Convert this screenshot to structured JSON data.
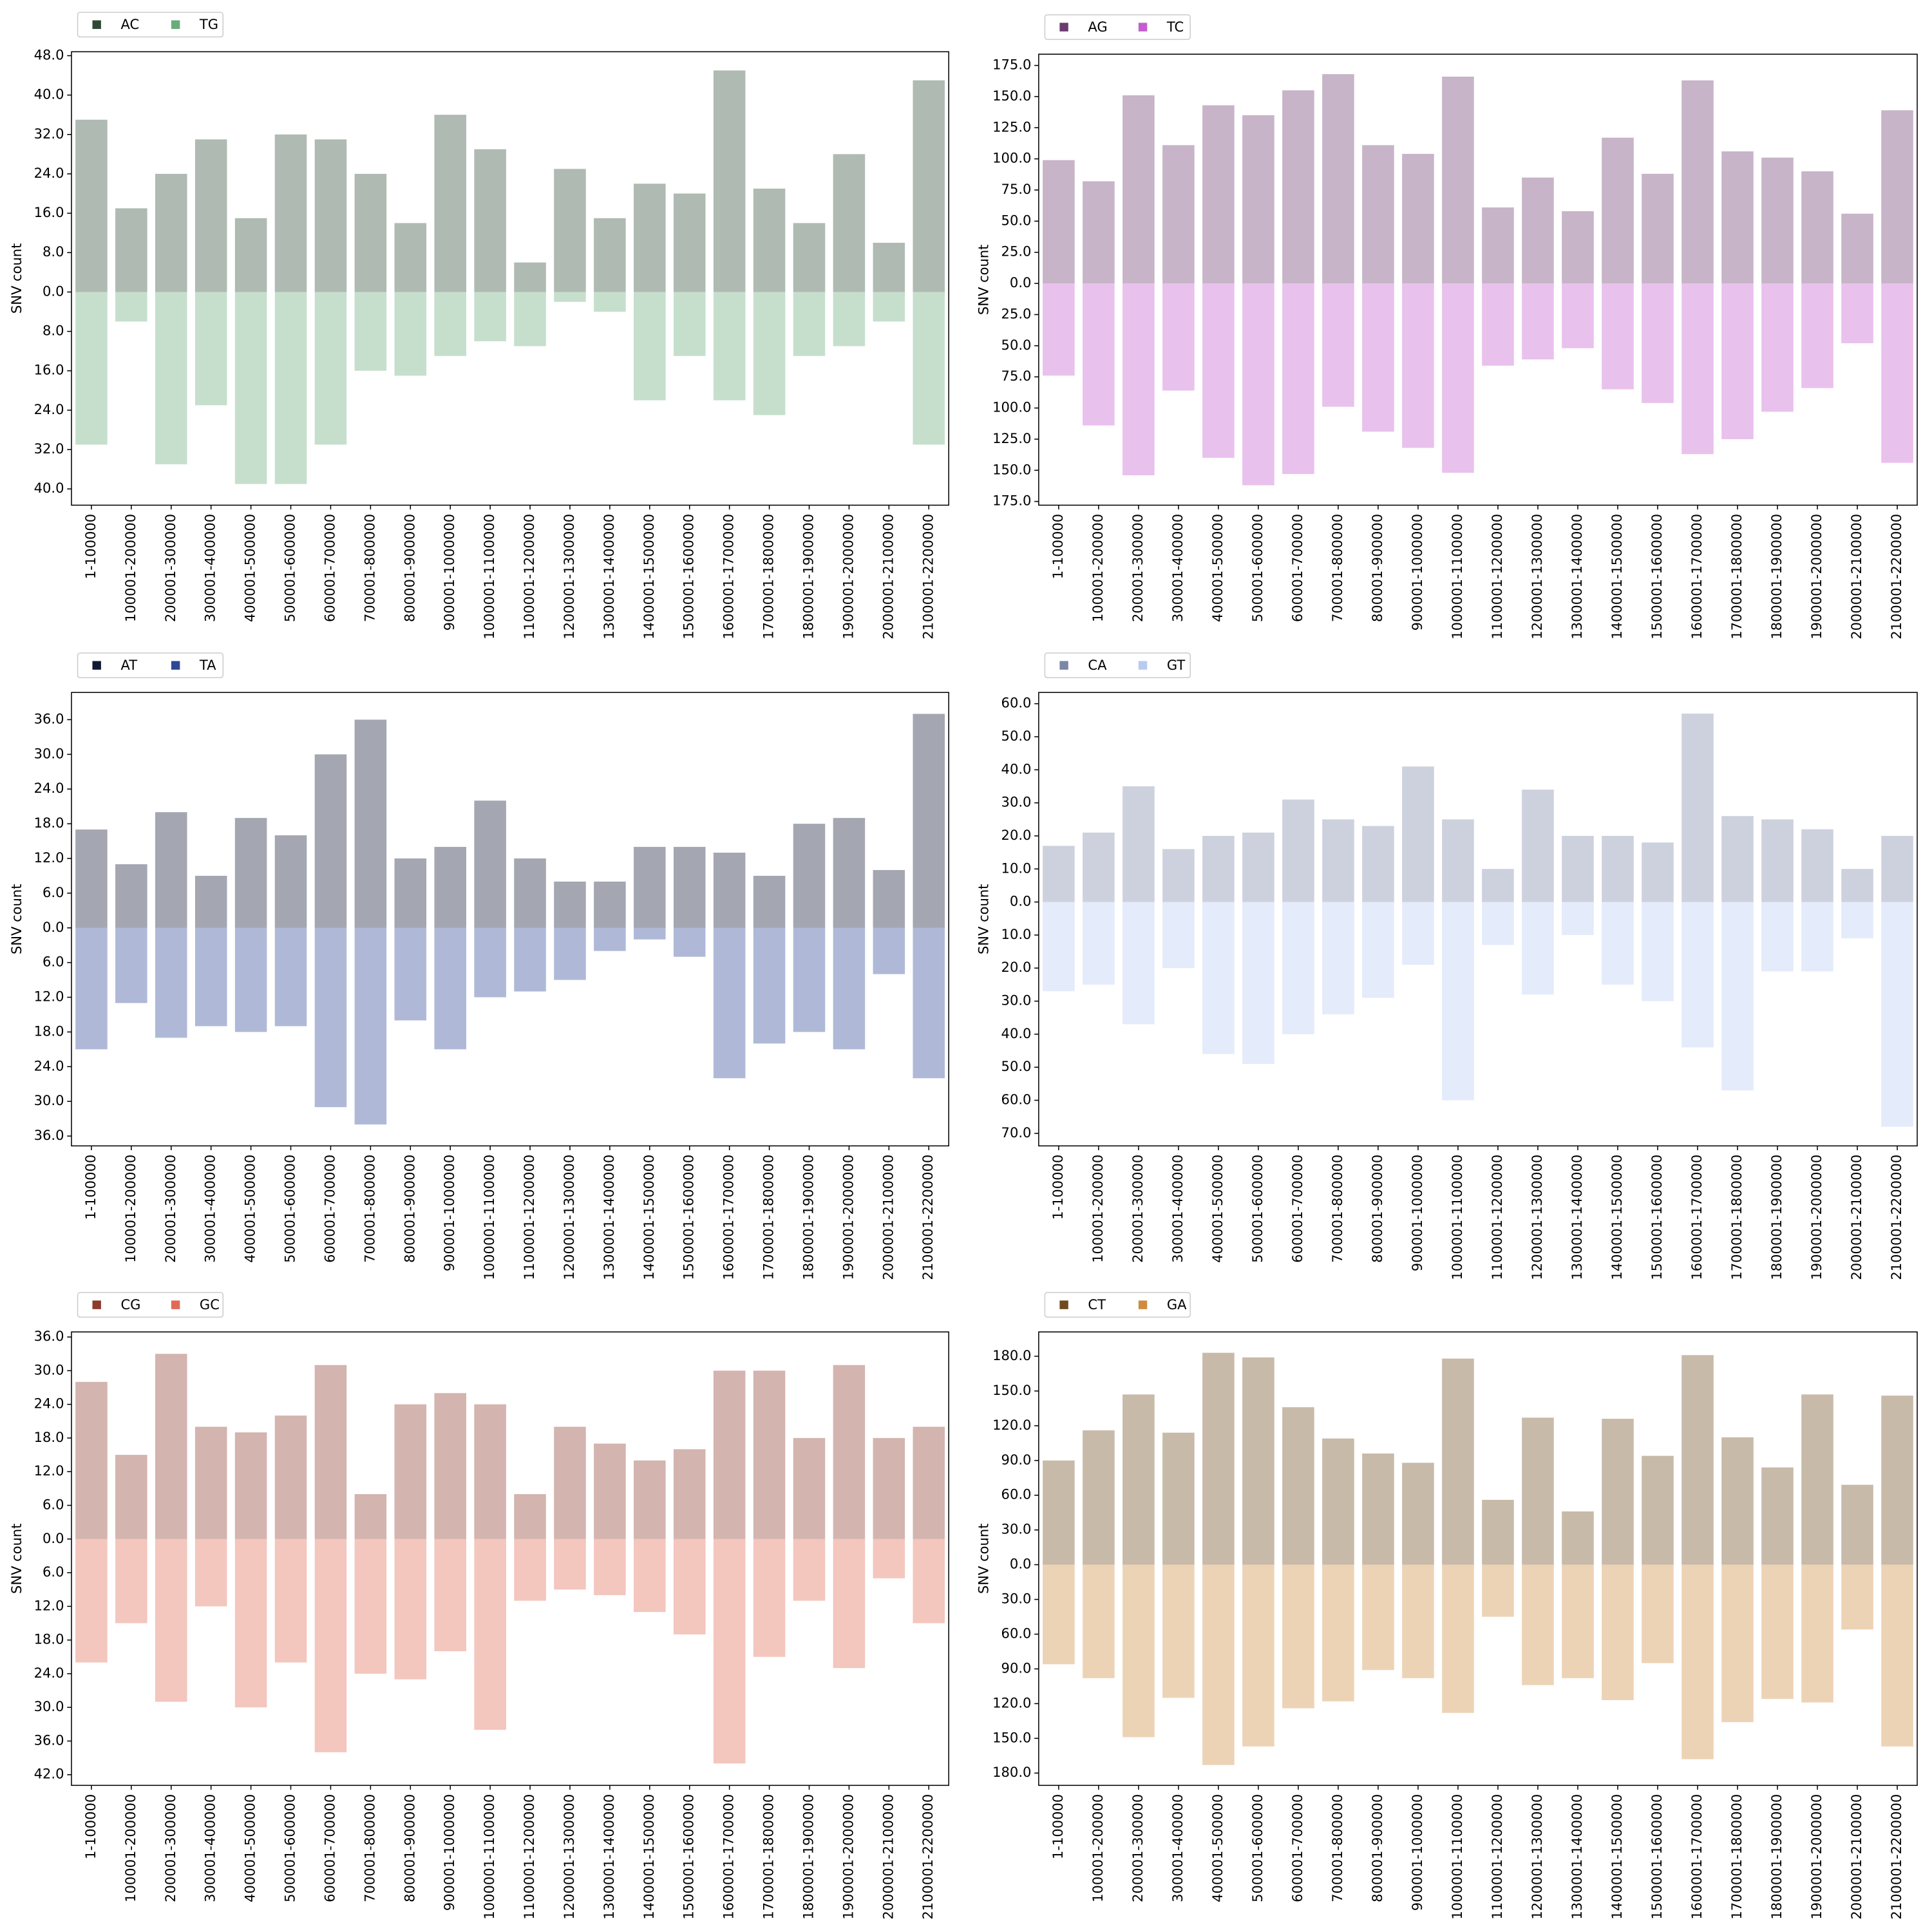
{
  "chart_data": [
    {
      "type": "bar",
      "ylabel": "SNV count",
      "legend": "above left",
      "categories": [
        "1-100000",
        "100001-200000",
        "200001-300000",
        "300001-400000",
        "400001-500000",
        "500001-600000",
        "600001-700000",
        "700001-800000",
        "800001-900000",
        "900001-1000000",
        "1000001-1100000",
        "1100001-1200000",
        "1200001-1300000",
        "1300001-1400000",
        "1400001-1500000",
        "1500001-1600000",
        "1600001-1700000",
        "1700001-1800000",
        "1800001-1900000",
        "1900001-2000000",
        "2000001-2100000",
        "2100001-2200000"
      ],
      "series": [
        {
          "name": "AC",
          "color": "#2e4a36",
          "values": [
            35,
            17,
            24,
            31,
            15,
            32,
            31,
            24,
            14,
            36,
            29,
            6,
            25,
            15,
            22,
            20,
            45,
            21,
            14,
            28,
            10,
            43
          ]
        },
        {
          "name": "TG",
          "color": "#6aab7b",
          "values": [
            -31,
            -6,
            -35,
            -23,
            -39,
            -39,
            -31,
            -16,
            -17,
            -13,
            -10,
            -11,
            -2,
            -4,
            -22,
            -13,
            -22,
            -25,
            -13,
            -11,
            -6,
            -31
          ]
        }
      ],
      "ylim": [
        -43.3,
        48.8
      ],
      "yticks": [
        {
          "value": 48,
          "label": "48.0"
        },
        {
          "value": 40,
          "label": "40.0"
        },
        {
          "value": 32,
          "label": "32.0"
        },
        {
          "value": 24,
          "label": "24.0"
        },
        {
          "value": 16,
          "label": "16.0"
        },
        {
          "value": 8,
          "label": "8.0"
        },
        {
          "value": 0,
          "label": "0.0"
        },
        {
          "value": -8,
          "label": "8.0"
        },
        {
          "value": -16,
          "label": "16.0"
        },
        {
          "value": -24,
          "label": "24.0"
        },
        {
          "value": -32,
          "label": "32.0"
        },
        {
          "value": -40,
          "label": "40.0"
        }
      ]
    },
    {
      "type": "bar",
      "ylabel": "SNV count",
      "legend": "above left",
      "categories": [
        "1-100000",
        "100001-200000",
        "200001-300000",
        "300001-400000",
        "400001-500000",
        "500001-600000",
        "600001-700000",
        "700001-800000",
        "800001-900000",
        "900001-1000000",
        "1000001-1100000",
        "1100001-1200000",
        "1200001-1300000",
        "1300001-1400000",
        "1400001-1500000",
        "1500001-1600000",
        "1600001-1700000",
        "1700001-1800000",
        "1800001-1900000",
        "1900001-2000000",
        "2000001-2100000",
        "2100001-2200000"
      ],
      "series": [
        {
          "name": "AG",
          "color": "#6b3a6e",
          "values": [
            99,
            82,
            151,
            111,
            143,
            135,
            155,
            168,
            111,
            104,
            166,
            61,
            85,
            58,
            117,
            88,
            163,
            106,
            101,
            90,
            56,
            139
          ]
        },
        {
          "name": "TC",
          "color": "#c45dcf",
          "values": [
            -74,
            -114,
            -154,
            -86,
            -140,
            -162,
            -153,
            -99,
            -119,
            -132,
            -152,
            -66,
            -61,
            -52,
            -85,
            -96,
            -137,
            -125,
            -103,
            -84,
            -48,
            -144
          ]
        }
      ],
      "ylim": [
        -178,
        184
      ],
      "yticks": [
        {
          "value": 175,
          "label": "175.0"
        },
        {
          "value": 150,
          "label": "150.0"
        },
        {
          "value": 125,
          "label": "125.0"
        },
        {
          "value": 100,
          "label": "100.0"
        },
        {
          "value": 75,
          "label": "75.0"
        },
        {
          "value": 50,
          "label": "50.0"
        },
        {
          "value": 25,
          "label": "25.0"
        },
        {
          "value": 0,
          "label": "0.0"
        },
        {
          "value": -25,
          "label": "25.0"
        },
        {
          "value": -50,
          "label": "50.0"
        },
        {
          "value": -75,
          "label": "75.0"
        },
        {
          "value": -100,
          "label": "100.0"
        },
        {
          "value": -125,
          "label": "125.0"
        },
        {
          "value": -150,
          "label": "150.0"
        },
        {
          "value": -175,
          "label": "175.0"
        }
      ]
    },
    {
      "type": "bar",
      "ylabel": "SNV count",
      "legend": "above left",
      "categories": [
        "1-100000",
        "100001-200000",
        "200001-300000",
        "300001-400000",
        "400001-500000",
        "500001-600000",
        "600001-700000",
        "700001-800000",
        "800001-900000",
        "900001-1000000",
        "1000001-1100000",
        "1100001-1200000",
        "1200001-1300000",
        "1300001-1400000",
        "1400001-1500000",
        "1500001-1600000",
        "1600001-1700000",
        "1700001-1800000",
        "1800001-1900000",
        "1900001-2000000",
        "2000001-2100000",
        "2100001-2200000"
      ],
      "series": [
        {
          "name": "AT",
          "color": "#111833",
          "values": [
            17,
            11,
            20,
            9,
            19,
            16,
            30,
            36,
            12,
            14,
            22,
            12,
            8,
            8,
            14,
            14,
            13,
            9,
            18,
            19,
            10,
            37
          ]
        },
        {
          "name": "TA",
          "color": "#2e4696",
          "values": [
            -21,
            -13,
            -19,
            -17,
            -18,
            -17,
            -31,
            -34,
            -16,
            -21,
            -12,
            -11,
            -9,
            -4,
            -2,
            -5,
            -26,
            -20,
            -18,
            -21,
            -8,
            -26
          ]
        }
      ],
      "ylim": [
        -37.7,
        40.7
      ],
      "yticks": [
        {
          "value": 36,
          "label": "36.0"
        },
        {
          "value": 30,
          "label": "30.0"
        },
        {
          "value": 24,
          "label": "24.0"
        },
        {
          "value": 18,
          "label": "18.0"
        },
        {
          "value": 12,
          "label": "12.0"
        },
        {
          "value": 6,
          "label": "6.0"
        },
        {
          "value": 0,
          "label": "0.0"
        },
        {
          "value": -6,
          "label": "6.0"
        },
        {
          "value": -12,
          "label": "12.0"
        },
        {
          "value": -18,
          "label": "18.0"
        },
        {
          "value": -24,
          "label": "24.0"
        },
        {
          "value": -30,
          "label": "30.0"
        },
        {
          "value": -36,
          "label": "36.0"
        }
      ]
    },
    {
      "type": "bar",
      "ylabel": "SNV count",
      "legend": "above left",
      "categories": [
        "1-100000",
        "100001-200000",
        "200001-300000",
        "300001-400000",
        "400001-500000",
        "500001-600000",
        "600001-700000",
        "700001-800000",
        "800001-900000",
        "900001-1000000",
        "1000001-1100000",
        "1100001-1200000",
        "1200001-1300000",
        "1300001-1400000",
        "1400001-1500000",
        "1500001-1600000",
        "1600001-1700000",
        "1700001-1800000",
        "1800001-1900000",
        "1900001-2000000",
        "2000001-2100000",
        "2100001-2200000"
      ],
      "series": [
        {
          "name": "CA",
          "color": "#7b86a8",
          "values": [
            17,
            21,
            35,
            16,
            20,
            21,
            31,
            25,
            23,
            41,
            25,
            10,
            34,
            20,
            20,
            18,
            57,
            26,
            25,
            22,
            10,
            20
          ]
        },
        {
          "name": "GT",
          "color": "#b7cbf2",
          "values": [
            -27,
            -25,
            -37,
            -20,
            -46,
            -49,
            -40,
            -34,
            -29,
            -19,
            -60,
            -13,
            -28,
            -10,
            -25,
            -30,
            -44,
            -57,
            -21,
            -21,
            -11,
            -68
          ]
        }
      ],
      "ylim": [
        -73.8,
        63.4
      ],
      "yticks": [
        {
          "value": 60,
          "label": "60.0"
        },
        {
          "value": 50,
          "label": "50.0"
        },
        {
          "value": 40,
          "label": "40.0"
        },
        {
          "value": 30,
          "label": "30.0"
        },
        {
          "value": 20,
          "label": "20.0"
        },
        {
          "value": 10,
          "label": "10.0"
        },
        {
          "value": 0,
          "label": "0.0"
        },
        {
          "value": -10,
          "label": "10.0"
        },
        {
          "value": -20,
          "label": "20.0"
        },
        {
          "value": -30,
          "label": "30.0"
        },
        {
          "value": -40,
          "label": "40.0"
        },
        {
          "value": -50,
          "label": "50.0"
        },
        {
          "value": -60,
          "label": "60.0"
        },
        {
          "value": -70,
          "label": "70.0"
        }
      ]
    },
    {
      "type": "bar",
      "ylabel": "SNV count",
      "legend": "above left",
      "categories": [
        "1-100000",
        "100001-200000",
        "200001-300000",
        "300001-400000",
        "400001-500000",
        "500001-600000",
        "600001-700000",
        "700001-800000",
        "800001-900000",
        "900001-1000000",
        "1000001-1100000",
        "1100001-1200000",
        "1200001-1300000",
        "1300001-1400000",
        "1400001-1500000",
        "1500001-1600000",
        "1600001-1700000",
        "1700001-1800000",
        "1800001-1900000",
        "1900001-2000000",
        "2000001-2100000",
        "2100001-2200000"
      ],
      "series": [
        {
          "name": "CG",
          "color": "#8c3a2e",
          "values": [
            28,
            15,
            33,
            20,
            19,
            22,
            31,
            8,
            24,
            26,
            24,
            8,
            20,
            17,
            14,
            16,
            30,
            30,
            18,
            31,
            18,
            20
          ]
        },
        {
          "name": "GC",
          "color": "#e06a55",
          "values": [
            -22,
            -15,
            -29,
            -12,
            -30,
            -22,
            -38,
            -24,
            -25,
            -20,
            -34,
            -11,
            -9,
            -10,
            -13,
            -17,
            -40,
            -21,
            -11,
            -23,
            -7,
            -15
          ]
        }
      ],
      "ylim": [
        -43.9,
        36.9
      ],
      "yticks": [
        {
          "value": 36,
          "label": "36.0"
        },
        {
          "value": 30,
          "label": "30.0"
        },
        {
          "value": 24,
          "label": "24.0"
        },
        {
          "value": 18,
          "label": "18.0"
        },
        {
          "value": 12,
          "label": "12.0"
        },
        {
          "value": 6,
          "label": "6.0"
        },
        {
          "value": 0,
          "label": "0.0"
        },
        {
          "value": -6,
          "label": "6.0"
        },
        {
          "value": -12,
          "label": "12.0"
        },
        {
          "value": -18,
          "label": "18.0"
        },
        {
          "value": -24,
          "label": "24.0"
        },
        {
          "value": -30,
          "label": "30.0"
        },
        {
          "value": -36,
          "label": "36.0"
        },
        {
          "value": -42,
          "label": "42.0"
        }
      ]
    },
    {
      "type": "bar",
      "ylabel": "SNV count",
      "legend": "above left",
      "categories": [
        "1-100000",
        "100001-200000",
        "200001-300000",
        "300001-400000",
        "400001-500000",
        "500001-600000",
        "600001-700000",
        "700001-800000",
        "800001-900000",
        "900001-1000000",
        "1000001-1100000",
        "1100001-1200000",
        "1200001-1300000",
        "1300001-1400000",
        "1400001-1500000",
        "1500001-1600000",
        "1600001-1700000",
        "1700001-1800000",
        "1800001-1900000",
        "1900001-2000000",
        "2000001-2100000",
        "2100001-2200000"
      ],
      "series": [
        {
          "name": "CT",
          "color": "#6e4a1e",
          "values": [
            90,
            116,
            147,
            114,
            183,
            179,
            136,
            109,
            96,
            88,
            178,
            56,
            127,
            46,
            126,
            94,
            181,
            110,
            84,
            147,
            69,
            146
          ]
        },
        {
          "name": "GA",
          "color": "#d08c3c",
          "values": [
            -86,
            -98,
            -149,
            -115,
            -173,
            -157,
            -124,
            -118,
            -91,
            -98,
            -128,
            -45,
            -104,
            -98,
            -117,
            -85,
            -168,
            -136,
            -116,
            -119,
            -56,
            -157
          ]
        }
      ],
      "ylim": [
        -190.6,
        201
      ],
      "yticks": [
        {
          "value": 180,
          "label": "180.0"
        },
        {
          "value": 150,
          "label": "150.0"
        },
        {
          "value": 120,
          "label": "120.0"
        },
        {
          "value": 90,
          "label": "90.0"
        },
        {
          "value": 60,
          "label": "60.0"
        },
        {
          "value": 30,
          "label": "30.0"
        },
        {
          "value": 0,
          "label": "0.0"
        },
        {
          "value": -30,
          "label": "30.0"
        },
        {
          "value": -60,
          "label": "60.0"
        },
        {
          "value": -90,
          "label": "90.0"
        },
        {
          "value": -120,
          "label": "120.0"
        },
        {
          "value": -150,
          "label": "150.0"
        },
        {
          "value": -180,
          "label": "180.0"
        }
      ]
    }
  ]
}
